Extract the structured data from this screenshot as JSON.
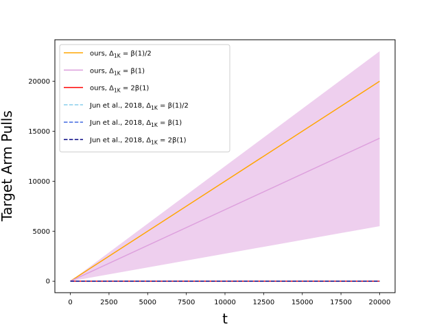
{
  "chart_data": {
    "type": "line",
    "xlabel": "t",
    "ylabel": "Target Arm Pulls",
    "xlim": [
      -1000,
      21000
    ],
    "ylim": [
      -1150,
      24150
    ],
    "xticks": [
      0,
      2500,
      5000,
      7500,
      10000,
      12500,
      15000,
      17500,
      20000
    ],
    "yticks": [
      0,
      5000,
      10000,
      15000,
      20000
    ],
    "grid": false,
    "legend_position": "upper-left",
    "series": [
      {
        "name": "ours, Δ_1K = β(1)/2",
        "legend_main": "ours, ",
        "legend_sub": "1K",
        "legend_rest": " = β(1)/2",
        "color": "#ffa500",
        "dash": "solid",
        "x": [
          0,
          20000
        ],
        "y": [
          0,
          20000
        ]
      },
      {
        "name": "ours, Δ_1K = β(1)",
        "legend_main": "ours, ",
        "legend_sub": "1K",
        "legend_rest": " = β(1)",
        "color": "#dda0dd",
        "dash": "solid",
        "x": [
          0,
          20000
        ],
        "y": [
          0,
          14300
        ],
        "band": {
          "x": [
            0,
            20000
          ],
          "lower": [
            0,
            5500
          ],
          "upper": [
            0,
            23000
          ],
          "color": "#dda0dd"
        }
      },
      {
        "name": "ours, Δ_1K = 2β(1)",
        "legend_main": "ours, ",
        "legend_sub": "1K",
        "legend_rest": " = 2β(1)",
        "color": "#ff0000",
        "dash": "solid",
        "x": [
          0,
          20000
        ],
        "y": [
          0,
          0
        ]
      },
      {
        "name": "Jun et al., 2018, Δ_1K = β(1)/2",
        "legend_main": "Jun et al., 2018, ",
        "legend_sub": "1K",
        "legend_rest": " = β(1)/2",
        "color": "#87ceeb",
        "dash": "dashed",
        "x": [
          0,
          20000
        ],
        "y": [
          0,
          0
        ]
      },
      {
        "name": "Jun et al., 2018, Δ_1K = β(1)",
        "legend_main": "Jun et al., 2018, ",
        "legend_sub": "1K",
        "legend_rest": " = β(1)",
        "color": "#4169e1",
        "dash": "dashed",
        "x": [
          0,
          20000
        ],
        "y": [
          0,
          0
        ]
      },
      {
        "name": "Jun et al., 2018, Δ_1K = 2β(1)",
        "legend_main": "Jun et al., 2018, ",
        "legend_sub": "1K",
        "legend_rest": " = 2β(1)",
        "color": "#000080",
        "dash": "dashed",
        "x": [
          0,
          20000
        ],
        "y": [
          0,
          0
        ]
      }
    ]
  }
}
